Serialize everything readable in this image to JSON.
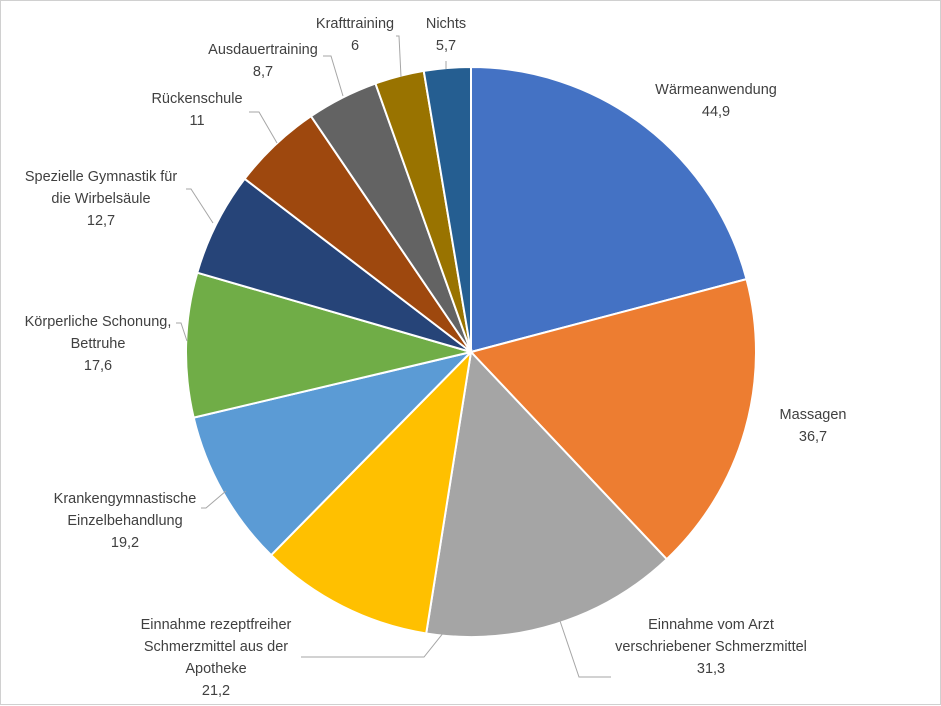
{
  "chart_data": {
    "type": "pie",
    "title": "",
    "start_angle_deg": 0,
    "direction": "clockwise",
    "slices": [
      {
        "label_lines": [
          "Wärmeanwendung"
        ],
        "value_text": "44,9",
        "value": 44.9,
        "color": "#4472c4"
      },
      {
        "label_lines": [
          "Massagen"
        ],
        "value_text": "36,7",
        "value": 36.7,
        "color": "#ed7d31"
      },
      {
        "label_lines": [
          "Einnahme vom Arzt",
          "verschriebener Schmerzmittel"
        ],
        "value_text": "31,3",
        "value": 31.3,
        "color": "#a5a5a5"
      },
      {
        "label_lines": [
          "Einnahme rezeptfreiher",
          "Schmerzmittel aus der",
          "Apotheke"
        ],
        "value_text": "21,2",
        "value": 21.2,
        "color": "#ffc000"
      },
      {
        "label_lines": [
          "Krankengymnastische",
          "Einzelbehandlung"
        ],
        "value_text": "19,2",
        "value": 19.2,
        "color": "#5b9bd5"
      },
      {
        "label_lines": [
          "Körperliche Schonung,",
          "Bettruhe"
        ],
        "value_text": "17,6",
        "value": 17.6,
        "color": "#70ad47"
      },
      {
        "label_lines": [
          "Spezielle Gymnastik für",
          "die Wirbelsäule"
        ],
        "value_text": "12,7",
        "value": 12.7,
        "color": "#264478"
      },
      {
        "label_lines": [
          "Rückenschule"
        ],
        "value_text": "11",
        "value": 11,
        "color": "#9e480e"
      },
      {
        "label_lines": [
          "Ausdauertraining"
        ],
        "value_text": "8,7",
        "value": 8.7,
        "color": "#636363"
      },
      {
        "label_lines": [
          "Krafttraining"
        ],
        "value_text": "6",
        "value": 6,
        "color": "#997300"
      },
      {
        "label_lines": [
          "Nichts"
        ],
        "value_text": "5,7",
        "value": 5.7,
        "color": "#255e91"
      }
    ]
  }
}
